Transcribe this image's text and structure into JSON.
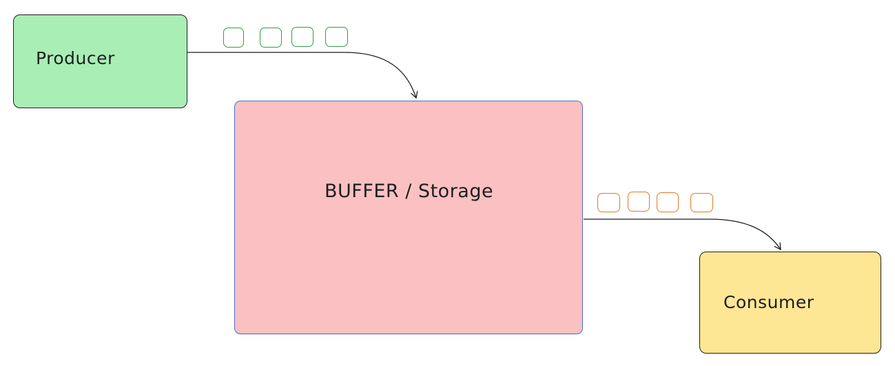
{
  "nodes": {
    "producer": {
      "label": "Producer",
      "fill": "#a9eeb5"
    },
    "buffer": {
      "label": "BUFFER / Storage",
      "fill": "#fbc0c2"
    },
    "consumer": {
      "label": "Consumer",
      "fill": "#fde795"
    }
  },
  "colors": {
    "stroke": "#1e1e1e",
    "buffer_border": "#4a6fd1",
    "produce_tokens": "#2f9e44",
    "consume_tokens": "#e8781f"
  },
  "edges": [
    {
      "from": "producer",
      "to": "buffer"
    },
    {
      "from": "buffer",
      "to": "consumer"
    }
  ],
  "token_groups": {
    "produced": {
      "count": 4,
      "color": "#2f9e44"
    },
    "consumed": {
      "count": 4,
      "color": "#e8781f"
    }
  }
}
